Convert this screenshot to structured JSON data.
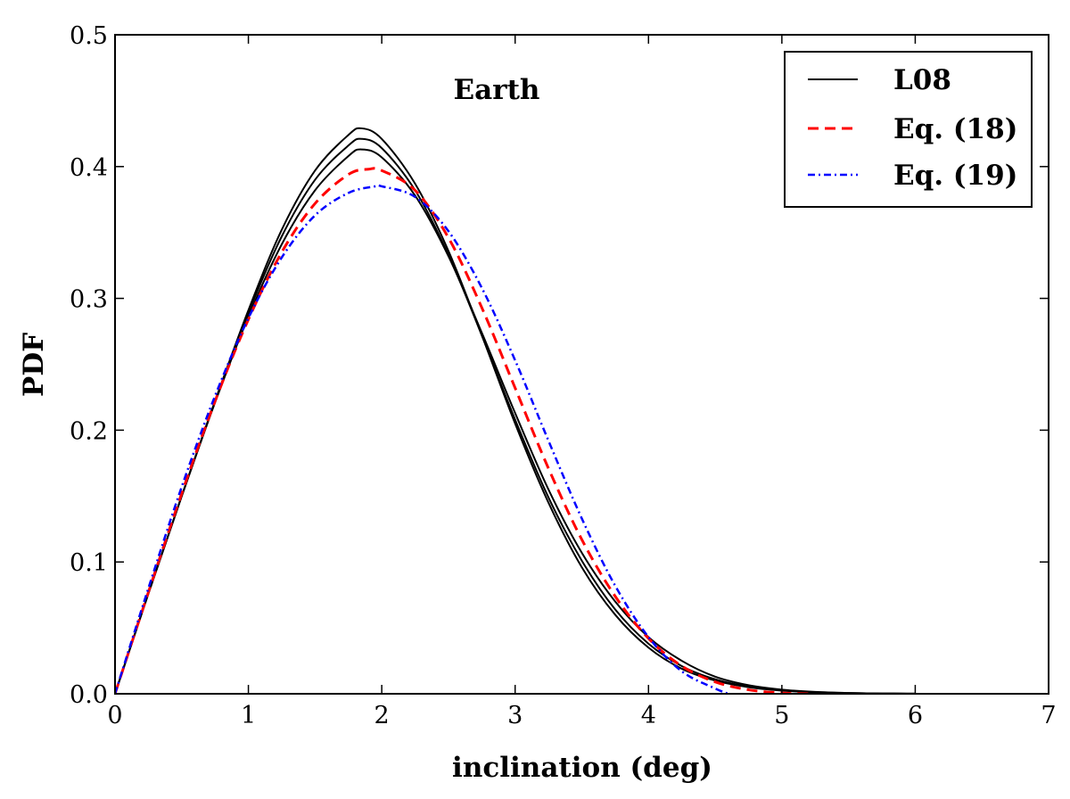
{
  "chart_data": {
    "type": "line",
    "title": "",
    "annotation": "Earth",
    "xlabel": "inclination (deg)",
    "ylabel": "PDF",
    "xlim": [
      0,
      7
    ],
    "ylim": [
      0,
      0.5
    ],
    "xticks": [
      0,
      1,
      2,
      3,
      4,
      5,
      6,
      7
    ],
    "xtick_labels": [
      "0",
      "1",
      "2",
      "3",
      "4",
      "5",
      "6",
      "7"
    ],
    "yticks": [
      0.0,
      0.1,
      0.2,
      0.3,
      0.4,
      0.5
    ],
    "ytick_labels": [
      "0.0",
      "0.1",
      "0.2",
      "0.3",
      "0.4",
      "0.5"
    ],
    "grid": false,
    "legend_position": "top-right",
    "legend": [
      {
        "label": "L08",
        "color": "#000000",
        "style": "solid"
      },
      {
        "label": "Eq. (18)",
        "color": "#ff0000",
        "style": "dashed"
      },
      {
        "label": "Eq. (19)",
        "color": "#0000ff",
        "style": "dashdot"
      }
    ],
    "series": [
      {
        "name": "L08",
        "color": "#000000",
        "style": "solid",
        "x": [
          0,
          0.25,
          0.5,
          0.75,
          1.0,
          1.25,
          1.5,
          1.75,
          1.85,
          2.0,
          2.25,
          2.5,
          2.75,
          3.0,
          3.25,
          3.5,
          3.75,
          4.0,
          4.25,
          4.5,
          4.75,
          5.0,
          5.25,
          5.5,
          5.75,
          6.0
        ],
        "y": [
          0,
          0.076,
          0.15,
          0.222,
          0.291,
          0.352,
          0.397,
          0.424,
          0.429,
          0.421,
          0.387,
          0.336,
          0.272,
          0.205,
          0.145,
          0.096,
          0.06,
          0.035,
          0.019,
          0.01,
          0.005,
          0.0024,
          0.0011,
          0.0005,
          0.0002,
          0.0001
        ]
      },
      {
        "name": "L08",
        "color": "#000000",
        "style": "solid",
        "x": [
          0,
          0.25,
          0.5,
          0.75,
          1.0,
          1.25,
          1.5,
          1.75,
          1.85,
          2.0,
          2.25,
          2.5,
          2.75,
          3.0,
          3.25,
          3.5,
          3.75,
          4.0,
          4.25,
          4.5,
          4.75,
          5.0,
          5.25,
          5.5,
          5.75,
          6.0
        ],
        "y": [
          0,
          0.076,
          0.15,
          0.222,
          0.289,
          0.347,
          0.39,
          0.416,
          0.421,
          0.414,
          0.382,
          0.333,
          0.272,
          0.208,
          0.149,
          0.101,
          0.064,
          0.038,
          0.021,
          0.011,
          0.0055,
          0.0026,
          0.0012,
          0.0005,
          0.0002,
          0.0001
        ]
      },
      {
        "name": "L08",
        "color": "#000000",
        "style": "solid",
        "x": [
          0,
          0.25,
          0.5,
          0.75,
          1.0,
          1.25,
          1.5,
          1.75,
          1.85,
          2.0,
          2.25,
          2.5,
          2.75,
          3.0,
          3.25,
          3.5,
          3.75,
          4.0,
          4.25,
          4.5,
          4.75,
          5.0,
          5.25,
          5.5,
          5.75,
          6.0
        ],
        "y": [
          0,
          0.076,
          0.15,
          0.221,
          0.286,
          0.341,
          0.382,
          0.408,
          0.413,
          0.407,
          0.378,
          0.332,
          0.274,
          0.213,
          0.155,
          0.107,
          0.07,
          0.043,
          0.025,
          0.013,
          0.0065,
          0.0031,
          0.0014,
          0.0006,
          0.0002,
          0.0001
        ]
      },
      {
        "name": "Eq. (18)",
        "color": "#ff0000",
        "style": "dashed",
        "x": [
          0,
          0.25,
          0.5,
          0.75,
          1.0,
          1.25,
          1.5,
          1.75,
          1.9,
          2.0,
          2.25,
          2.5,
          2.75,
          3.0,
          3.25,
          3.5,
          3.75,
          4.0,
          4.25,
          4.5,
          4.75,
          5.0,
          5.2
        ],
        "y": [
          0,
          0.077,
          0.152,
          0.222,
          0.284,
          0.335,
          0.372,
          0.394,
          0.398,
          0.397,
          0.382,
          0.346,
          0.293,
          0.232,
          0.171,
          0.117,
          0.074,
          0.042,
          0.021,
          0.009,
          0.003,
          0.0006,
          0
        ]
      },
      {
        "name": "Eq. (19)",
        "color": "#0000ff",
        "style": "dashdot",
        "x": [
          0,
          0.25,
          0.5,
          0.75,
          1.0,
          1.25,
          1.5,
          1.75,
          1.95,
          2.0,
          2.25,
          2.5,
          2.75,
          3.0,
          3.25,
          3.5,
          3.75,
          4.0,
          4.25,
          4.5,
          4.6
        ],
        "y": [
          0,
          0.08,
          0.157,
          0.226,
          0.285,
          0.331,
          0.363,
          0.38,
          0.385,
          0.385,
          0.377,
          0.351,
          0.308,
          0.253,
          0.192,
          0.133,
          0.082,
          0.043,
          0.017,
          0.004,
          0
        ]
      }
    ]
  }
}
